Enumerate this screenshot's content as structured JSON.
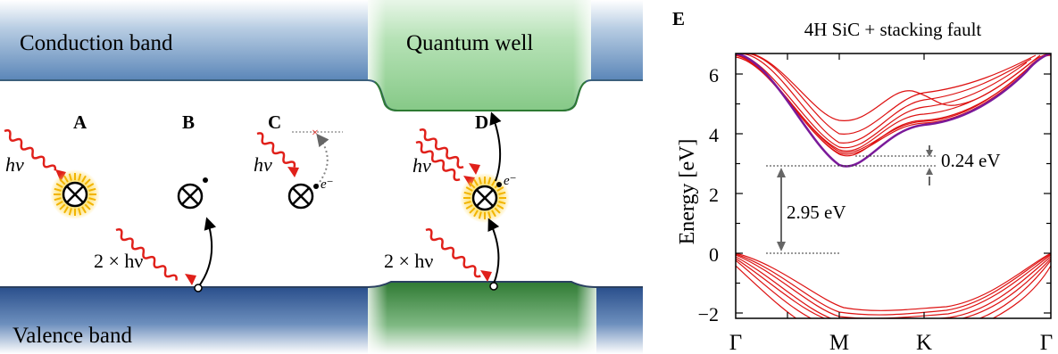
{
  "bands": {
    "conduction": "Conduction band",
    "valence": "Valence band",
    "quantum_well": "Quantum well"
  },
  "processes": {
    "A": {
      "label": "A",
      "photon": "hν"
    },
    "B": {
      "label": "B",
      "photon": "2 × hν"
    },
    "C": {
      "label": "C",
      "photon": "hν",
      "electron": "e⁻"
    },
    "D": {
      "label": "D",
      "photon_top": "hν",
      "photon_bottom": "2 × hν",
      "electron": "e⁻"
    }
  },
  "panel_e": {
    "label": "E",
    "title": "4H SiC + stacking fault",
    "ylabel": "Energy [eV]",
    "yticks": [
      "6",
      "4",
      "2",
      "0",
      "−2"
    ],
    "xticks": [
      "Γ",
      "M",
      "K",
      "Γ"
    ],
    "annot_gap": "2.95 eV",
    "annot_small": "0.24 eV"
  },
  "colors": {
    "conduction_band": "#5b86b8",
    "valence_band": "#2a4f8c",
    "quantum_well": "#86c987",
    "quantum_well_valence": "#2f7a33",
    "bands_red": "#dd1111",
    "bands_purple": "#7a1a9a"
  },
  "chart_data": {
    "type": "line",
    "x": [
      "Γ",
      "M",
      "K",
      "Γ"
    ],
    "ylabel": "Energy [eV]",
    "ylim": [
      -2.2,
      6.7
    ],
    "annotations": [
      {
        "text": "2.95 eV",
        "value": 2.95
      },
      {
        "text": "0.24 eV",
        "value": 0.24
      }
    ]
  }
}
